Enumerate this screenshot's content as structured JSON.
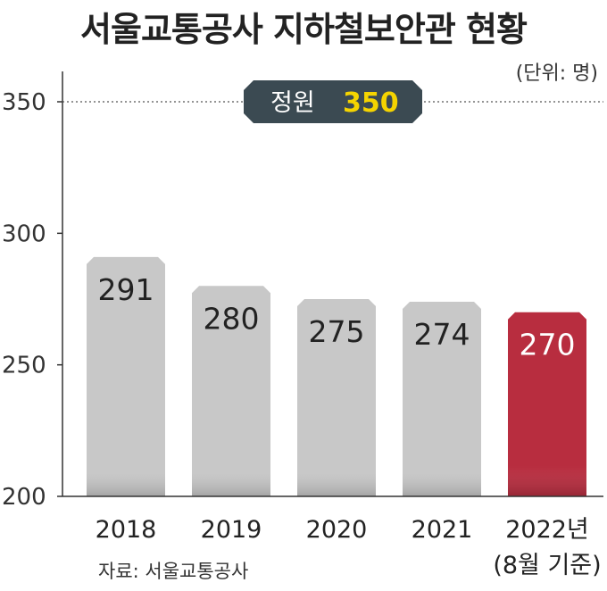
{
  "title": "서울교통공사 지하철보안관 현황",
  "unit_note": "(단위: 명)",
  "source_note": "자료: 서울교통공사",
  "colors": {
    "bar_default": "#c8c8c8",
    "bar_highlight": "#b82d3f",
    "badge_bg": "#3b4a52",
    "badge_value": "#f5d400"
  },
  "chart_data": {
    "type": "bar",
    "title": "서울교통공사 지하철보안관 현황",
    "categories": [
      "2018",
      "2019",
      "2020",
      "2021",
      "2022년"
    ],
    "category_sublabels": [
      "",
      "",
      "",
      "",
      "(8월 기준)"
    ],
    "values": [
      291,
      280,
      275,
      274,
      270
    ],
    "value_labels": [
      "291",
      "280",
      "275",
      "274",
      "270"
    ],
    "highlight_index": 4,
    "ylim": [
      200,
      350
    ],
    "yticks": [
      "200",
      "250",
      "300",
      "350"
    ],
    "reference_line": {
      "value": 350,
      "label": "정원",
      "value_label": "350"
    },
    "grid": false
  }
}
